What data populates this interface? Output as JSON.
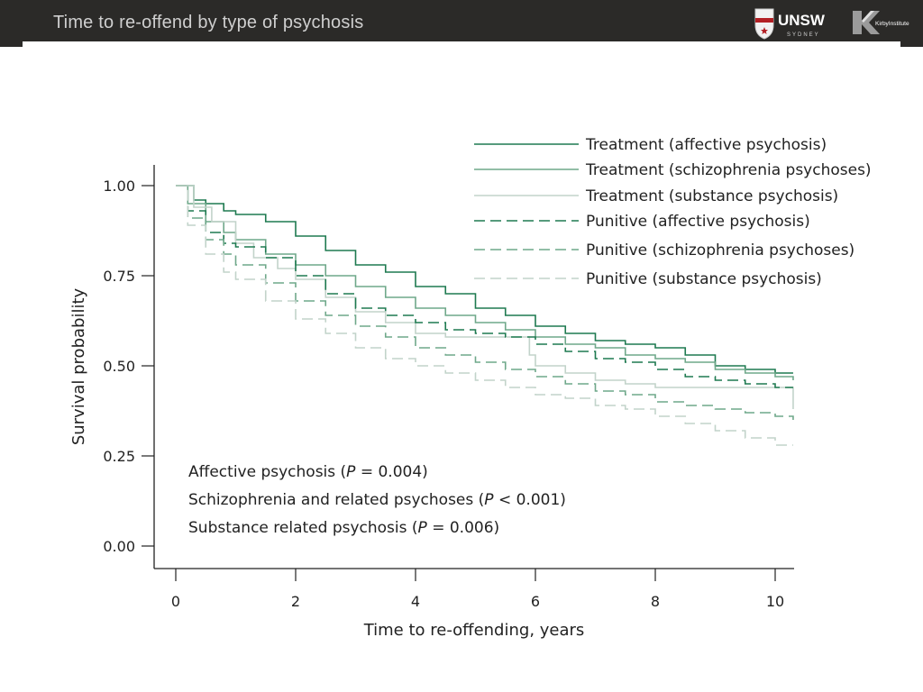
{
  "slide": {
    "title": "Time to re-offend by type of psychosis"
  },
  "logos": {
    "unsw_text": "UNSW",
    "unsw_sub": "SYDNEY",
    "kirby_text": "KirbyInstitute"
  },
  "colors": {
    "header_bg": "#2b2a28",
    "treatment_affective": "#1e7a50",
    "treatment_schizophrenia": "#6fa88a",
    "treatment_substance": "#c2d3ca",
    "punitive_affective": "#1e7a50",
    "punitive_schizophrenia": "#6fa88a",
    "punitive_substance": "#c2d3ca"
  },
  "chart_data": {
    "type": "line",
    "title": "",
    "xlabel": "Time to re-offending, years",
    "ylabel": "Survival probability",
    "xlim": [
      0,
      10.3
    ],
    "ylim": [
      0,
      1.05
    ],
    "xticks": [
      0,
      2,
      4,
      6,
      8,
      10
    ],
    "xtick_labels": [
      "0",
      "2",
      "4",
      "6",
      "8",
      "10"
    ],
    "yticks": [
      0,
      0.25,
      0.5,
      0.75,
      1.0
    ],
    "ytick_labels": [
      "0.00",
      "0.25",
      "0.50",
      "0.75",
      "1.00"
    ],
    "legend_position": "top-right",
    "series": [
      {
        "name": "Treatment (affective psychosis)",
        "style": "solid",
        "color_key": "treatment_affective",
        "x": [
          0,
          0.3,
          0.5,
          0.8,
          1.0,
          1.5,
          2.0,
          2.5,
          3.0,
          3.5,
          4.0,
          4.5,
          5.0,
          5.5,
          6.0,
          6.5,
          7.0,
          7.5,
          8.0,
          8.5,
          9.0,
          9.5,
          10.0,
          10.3
        ],
        "y": [
          1.0,
          0.96,
          0.95,
          0.93,
          0.92,
          0.9,
          0.86,
          0.82,
          0.78,
          0.76,
          0.72,
          0.7,
          0.66,
          0.64,
          0.61,
          0.59,
          0.57,
          0.56,
          0.55,
          0.53,
          0.5,
          0.49,
          0.48,
          0.48
        ]
      },
      {
        "name": "Treatment (schizophrenia psychoses)",
        "style": "solid",
        "color_key": "treatment_schizophrenia",
        "x": [
          0,
          0.2,
          0.5,
          0.8,
          1.0,
          1.5,
          2.0,
          2.5,
          3.0,
          3.5,
          4.0,
          4.5,
          5.0,
          5.5,
          6.0,
          6.5,
          7.0,
          7.5,
          8.0,
          8.5,
          9.0,
          9.5,
          10.0,
          10.3
        ],
        "y": [
          1.0,
          0.95,
          0.9,
          0.87,
          0.85,
          0.81,
          0.78,
          0.75,
          0.72,
          0.69,
          0.66,
          0.64,
          0.62,
          0.6,
          0.58,
          0.56,
          0.55,
          0.53,
          0.52,
          0.51,
          0.49,
          0.48,
          0.47,
          0.46
        ]
      },
      {
        "name": "Treatment (substance psychosis)",
        "style": "solid",
        "color_key": "treatment_substance",
        "x": [
          0,
          0.3,
          0.6,
          1.0,
          1.3,
          1.7,
          2.0,
          2.5,
          3.0,
          3.5,
          4.0,
          4.5,
          5.0,
          5.5,
          5.9,
          6.0,
          6.5,
          7.0,
          7.5,
          8.0,
          9.0,
          10.0,
          10.3
        ],
        "y": [
          1.0,
          0.94,
          0.9,
          0.84,
          0.8,
          0.77,
          0.74,
          0.69,
          0.65,
          0.62,
          0.59,
          0.58,
          0.58,
          0.58,
          0.53,
          0.5,
          0.48,
          0.46,
          0.45,
          0.44,
          0.44,
          0.44,
          0.38
        ]
      },
      {
        "name": "Punitive (affective psychosis)",
        "style": "dash",
        "color_key": "punitive_affective",
        "x": [
          0,
          0.2,
          0.5,
          0.8,
          1.0,
          1.5,
          2.0,
          2.5,
          3.0,
          3.5,
          4.0,
          4.5,
          5.0,
          5.5,
          6.0,
          6.5,
          7.0,
          7.5,
          8.0,
          8.5,
          9.0,
          9.5,
          10.0,
          10.3
        ],
        "y": [
          1.0,
          0.93,
          0.87,
          0.84,
          0.83,
          0.8,
          0.75,
          0.7,
          0.66,
          0.64,
          0.62,
          0.6,
          0.59,
          0.58,
          0.56,
          0.54,
          0.52,
          0.51,
          0.49,
          0.47,
          0.46,
          0.45,
          0.44,
          0.44
        ]
      },
      {
        "name": "Punitive (schizophrenia psychoses)",
        "style": "dash",
        "color_key": "punitive_schizophrenia",
        "x": [
          0,
          0.2,
          0.5,
          0.8,
          1.0,
          1.5,
          2.0,
          2.5,
          3.0,
          3.5,
          4.0,
          4.5,
          5.0,
          5.5,
          6.0,
          6.5,
          7.0,
          7.5,
          8.0,
          8.5,
          9.0,
          9.5,
          10.0,
          10.3
        ],
        "y": [
          1.0,
          0.91,
          0.85,
          0.81,
          0.78,
          0.73,
          0.68,
          0.64,
          0.61,
          0.58,
          0.55,
          0.53,
          0.51,
          0.49,
          0.47,
          0.45,
          0.43,
          0.42,
          0.4,
          0.39,
          0.38,
          0.37,
          0.36,
          0.35
        ]
      },
      {
        "name": "Punitive (substance psychosis)",
        "style": "dash",
        "color_key": "punitive_substance",
        "x": [
          0,
          0.2,
          0.5,
          0.8,
          1.0,
          1.5,
          2.0,
          2.5,
          3.0,
          3.5,
          4.0,
          4.5,
          5.0,
          5.5,
          6.0,
          6.5,
          7.0,
          7.5,
          8.0,
          8.5,
          9.0,
          9.5,
          10.0,
          10.3
        ],
        "y": [
          1.0,
          0.89,
          0.81,
          0.76,
          0.74,
          0.68,
          0.63,
          0.59,
          0.55,
          0.52,
          0.5,
          0.48,
          0.46,
          0.44,
          0.42,
          0.41,
          0.39,
          0.38,
          0.36,
          0.34,
          0.32,
          0.3,
          0.28,
          0.28
        ]
      }
    ],
    "annotations": [
      {
        "prefix": "Affective psychosis (",
        "p_symbol": "P",
        "rest": " = 0.004)"
      },
      {
        "prefix": "Schizophrenia and related psychoses (",
        "p_symbol": "P",
        "rest": " < 0.001)"
      },
      {
        "prefix": "Substance related psychosis (",
        "p_symbol": "P",
        "rest": " = 0.006)"
      }
    ]
  }
}
